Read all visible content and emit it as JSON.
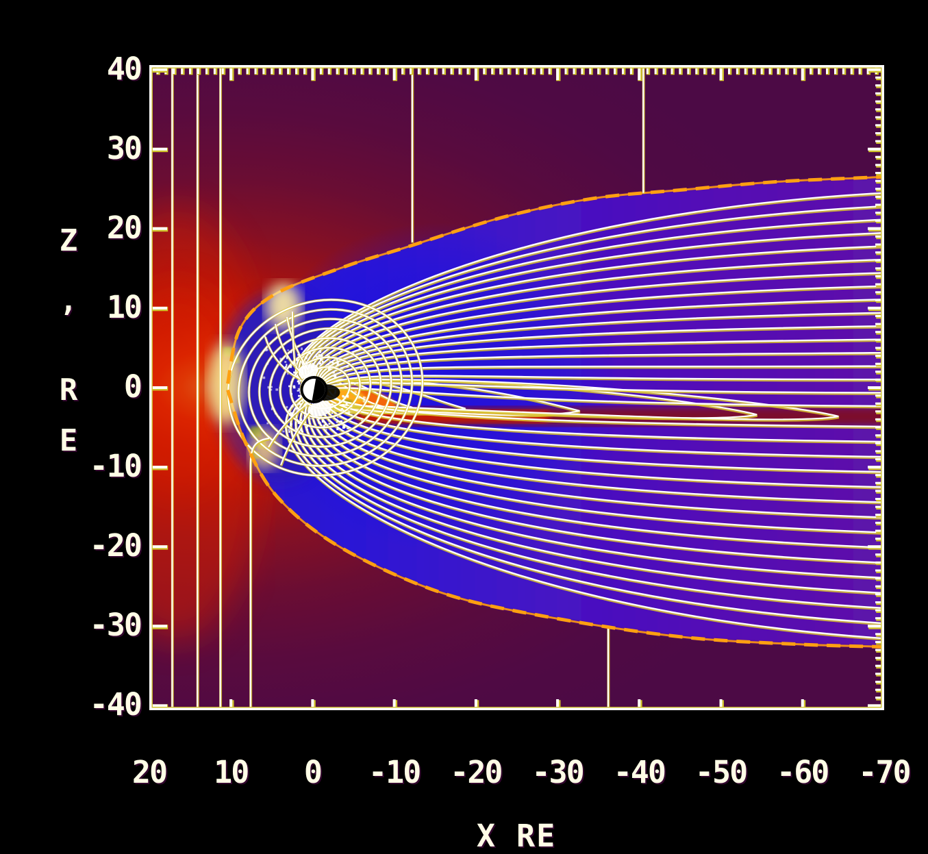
{
  "figure": {
    "description": "Global MHD magnetosphere simulation: pressure colormap in noon-midnight meridian with magnetic field lines and dashed magnetopause",
    "units": "Earth radii (RE)"
  },
  "axes": {
    "x": {
      "title": "X RE",
      "ticks": [
        20,
        10,
        0,
        -10,
        -20,
        -30,
        -40,
        -50,
        -60,
        -70
      ],
      "minor_step": 1
    },
    "y": {
      "title": "Z , R E",
      "title_chars": [
        "Z",
        ",",
        "R",
        "E"
      ],
      "ticks": [
        40,
        30,
        20,
        10,
        0,
        -10,
        -20,
        -30,
        -40
      ],
      "minor_step": 1
    }
  },
  "chart_data": {
    "type": "heatmap",
    "title": "",
    "xlabel": "X RE",
    "ylabel": "Z , R E",
    "x_range": [
      20,
      -70
    ],
    "z_range": [
      40.57,
      -40.57
    ],
    "grid": false,
    "colormap_regions": [
      {
        "name": "upstream-solar-wind",
        "color": "#4c0a45"
      },
      {
        "name": "magnetosheath-outer",
        "color": "#851024"
      },
      {
        "name": "magnetosheath-nose",
        "color": "#ff8114"
      },
      {
        "name": "subsolar-hot-spot",
        "color": "#ffe792"
      },
      {
        "name": "tail-lobe-near",
        "color": "#2a17d6"
      },
      {
        "name": "tail-lobe-far",
        "color": "#5e12a8"
      },
      {
        "name": "plasma-sheet",
        "color": "#7e1128"
      },
      {
        "name": "inner-magnetosphere-ring",
        "color": "#ff6a00"
      },
      {
        "name": "cusp-patches",
        "color": "#7f9c1e"
      }
    ],
    "subsolar_standoff_re": 10.7,
    "magnetopause_upper": [
      [
        10.4,
        0.5
      ],
      [
        8.9,
        7.4
      ],
      [
        4.7,
        11.7
      ],
      [
        -3.9,
        15.2
      ],
      [
        -11.0,
        17.5
      ],
      [
        -23.2,
        21.4
      ],
      [
        -34.4,
        23.8
      ],
      [
        -45.6,
        24.9
      ],
      [
        -57.0,
        25.9
      ],
      [
        -69.9,
        26.5
      ]
    ],
    "magnetopause_lower": [
      [
        10.4,
        -0.3
      ],
      [
        8.1,
        -7.2
      ],
      [
        4.1,
        -14.0
      ],
      [
        -3.6,
        -20.2
      ],
      [
        -16.1,
        -25.9
      ],
      [
        -29.7,
        -29.0
      ],
      [
        -45.6,
        -31.4
      ],
      [
        -60.0,
        -32.3
      ],
      [
        -69.9,
        -32.6
      ]
    ],
    "neutral_sheet_z_re": -3.5,
    "closed_fieldline_vertices_x_re": [
      -5.2,
      -8.7,
      -12.2,
      -18.7,
      -32.7,
      -54.4,
      -64.4
    ],
    "imf_lines": [
      {
        "x_re": 17.2,
        "z_from": 40.6,
        "z_to": -40.6
      },
      {
        "x_re": 14.1,
        "z_from": 40.6,
        "z_to": -40.6
      },
      {
        "x_re": 11.3,
        "z_from": 40.6,
        "z_to": -40.6
      },
      {
        "x_re": 7.6,
        "z_from": -6.8,
        "z_to": -40.6
      },
      {
        "x_re": -12.2,
        "z_from": 40.6,
        "z_to": 18.3
      },
      {
        "x_re": -40.5,
        "z_from": 40.6,
        "z_to": 24.5
      },
      {
        "x_re": -36.2,
        "z_from": -30.2,
        "z_to": -40.6
      }
    ],
    "n_tail_lines_upper": 17,
    "n_tail_lines_lower": 15,
    "n_dayside_loops": 8,
    "earth": {
      "x_re": 0,
      "z_re": 0,
      "radius_px": 16,
      "day_color": "#ffffff",
      "night_color": "#000000"
    }
  },
  "colors": {
    "background": "#000000",
    "frame": "#ffffff",
    "frame_accent": "#cfc12a",
    "label": "#fffde6",
    "field_line": "#ffffff",
    "field_line_fringe": "#d9c430",
    "magnetopause_dash": "#ffa011"
  }
}
